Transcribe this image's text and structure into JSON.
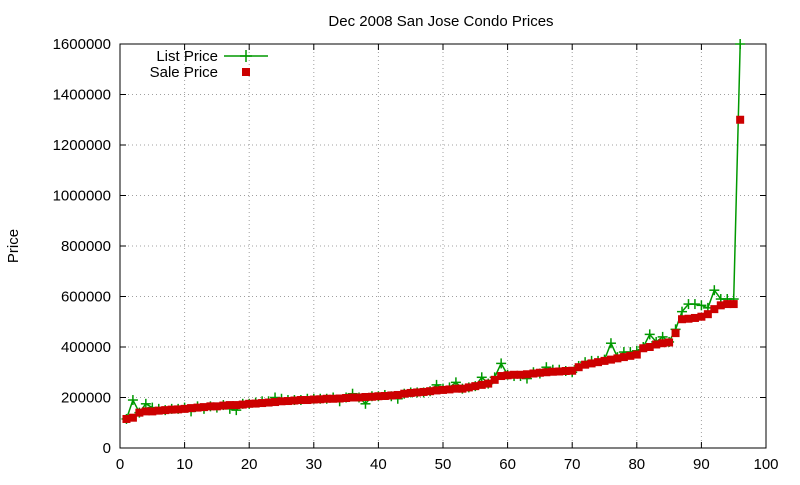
{
  "chart_data": {
    "type": "line",
    "title": "Dec 2008 San Jose Condo Prices",
    "xlabel": "",
    "ylabel": "Price",
    "xlim": [
      0,
      100
    ],
    "ylim": [
      0,
      1600000
    ],
    "x_ticks": [
      0,
      10,
      20,
      30,
      40,
      50,
      60,
      70,
      80,
      90,
      100
    ],
    "y_ticks": [
      0,
      200000,
      400000,
      600000,
      800000,
      1000000,
      1200000,
      1400000,
      1600000
    ],
    "x_tick_labels": [
      "0",
      "10",
      "20",
      "30",
      "40",
      "50",
      "60",
      "70",
      "80",
      "90",
      "100"
    ],
    "y_tick_labels": [
      "0",
      "200000",
      "400000",
      "600000",
      "800000",
      "1000000",
      "1200000",
      "1400000",
      "1600000"
    ],
    "grid": true,
    "legend_position": "top-left",
    "series": [
      {
        "name": "List Price",
        "style": "linespoints",
        "marker": "plus",
        "color": "#009900",
        "x": [
          1,
          2,
          3,
          4,
          5,
          6,
          7,
          8,
          9,
          10,
          11,
          12,
          13,
          14,
          15,
          16,
          17,
          18,
          19,
          20,
          21,
          22,
          23,
          24,
          25,
          26,
          27,
          28,
          29,
          30,
          31,
          32,
          33,
          34,
          35,
          36,
          37,
          38,
          39,
          40,
          41,
          42,
          43,
          44,
          45,
          46,
          47,
          48,
          49,
          50,
          51,
          52,
          53,
          54,
          55,
          56,
          57,
          58,
          59,
          60,
          61,
          62,
          63,
          64,
          65,
          66,
          67,
          68,
          69,
          70,
          71,
          72,
          73,
          74,
          75,
          76,
          77,
          78,
          79,
          80,
          81,
          82,
          83,
          84,
          85,
          86,
          87,
          88,
          89,
          90,
          91,
          92,
          93,
          94,
          95,
          96
        ],
        "y": [
          115000,
          190000,
          140000,
          175000,
          160000,
          155000,
          150000,
          155000,
          155000,
          160000,
          145000,
          165000,
          155000,
          165000,
          160000,
          170000,
          155000,
          150000,
          175000,
          175000,
          180000,
          185000,
          185000,
          200000,
          195000,
          190000,
          190000,
          190000,
          195000,
          195000,
          195000,
          195000,
          200000,
          185000,
          200000,
          215000,
          200000,
          175000,
          205000,
          205000,
          210000,
          205000,
          195000,
          215000,
          220000,
          220000,
          220000,
          225000,
          250000,
          235000,
          240000,
          260000,
          235000,
          240000,
          245000,
          280000,
          255000,
          280000,
          335000,
          290000,
          285000,
          285000,
          275000,
          300000,
          295000,
          320000,
          310000,
          310000,
          305000,
          300000,
          325000,
          340000,
          345000,
          345000,
          350000,
          415000,
          360000,
          380000,
          380000,
          385000,
          400000,
          450000,
          420000,
          440000,
          420000,
          470000,
          540000,
          570000,
          570000,
          565000,
          555000,
          625000,
          590000,
          590000,
          590000,
          1600000
        ]
      },
      {
        "name": "Sale Price",
        "style": "points",
        "marker": "square",
        "color": "#cc0000",
        "x": [
          1,
          2,
          3,
          4,
          5,
          6,
          7,
          8,
          9,
          10,
          11,
          12,
          13,
          14,
          15,
          16,
          17,
          18,
          19,
          20,
          21,
          22,
          23,
          24,
          25,
          26,
          27,
          28,
          29,
          30,
          31,
          32,
          33,
          34,
          35,
          36,
          37,
          38,
          39,
          40,
          41,
          42,
          43,
          44,
          45,
          46,
          47,
          48,
          49,
          50,
          51,
          52,
          53,
          54,
          55,
          56,
          57,
          58,
          59,
          60,
          61,
          62,
          63,
          64,
          65,
          66,
          67,
          68,
          69,
          70,
          71,
          72,
          73,
          74,
          75,
          76,
          77,
          78,
          79,
          80,
          81,
          82,
          83,
          84,
          85,
          86,
          87,
          88,
          89,
          90,
          91,
          92,
          93,
          94,
          95,
          96
        ],
        "y": [
          115000,
          120000,
          140000,
          145000,
          145000,
          148000,
          150000,
          152000,
          153000,
          155000,
          158000,
          160000,
          162000,
          165000,
          165000,
          168000,
          170000,
          170000,
          172000,
          175000,
          176000,
          178000,
          180000,
          182000,
          185000,
          186000,
          188000,
          190000,
          190000,
          192000,
          193000,
          195000,
          195000,
          196000,
          198000,
          200000,
          200000,
          202000,
          203000,
          205000,
          206000,
          208000,
          210000,
          215000,
          218000,
          220000,
          222000,
          225000,
          228000,
          230000,
          232000,
          235000,
          235000,
          240000,
          245000,
          250000,
          255000,
          270000,
          285000,
          288000,
          290000,
          290000,
          292000,
          295000,
          298000,
          300000,
          302000,
          303000,
          305000,
          306000,
          320000,
          330000,
          335000,
          340000,
          345000,
          350000,
          355000,
          360000,
          365000,
          370000,
          395000,
          400000,
          410000,
          415000,
          418000,
          455000,
          510000,
          512000,
          515000,
          520000,
          530000,
          550000,
          565000,
          570000,
          570000,
          1300000
        ]
      }
    ]
  }
}
